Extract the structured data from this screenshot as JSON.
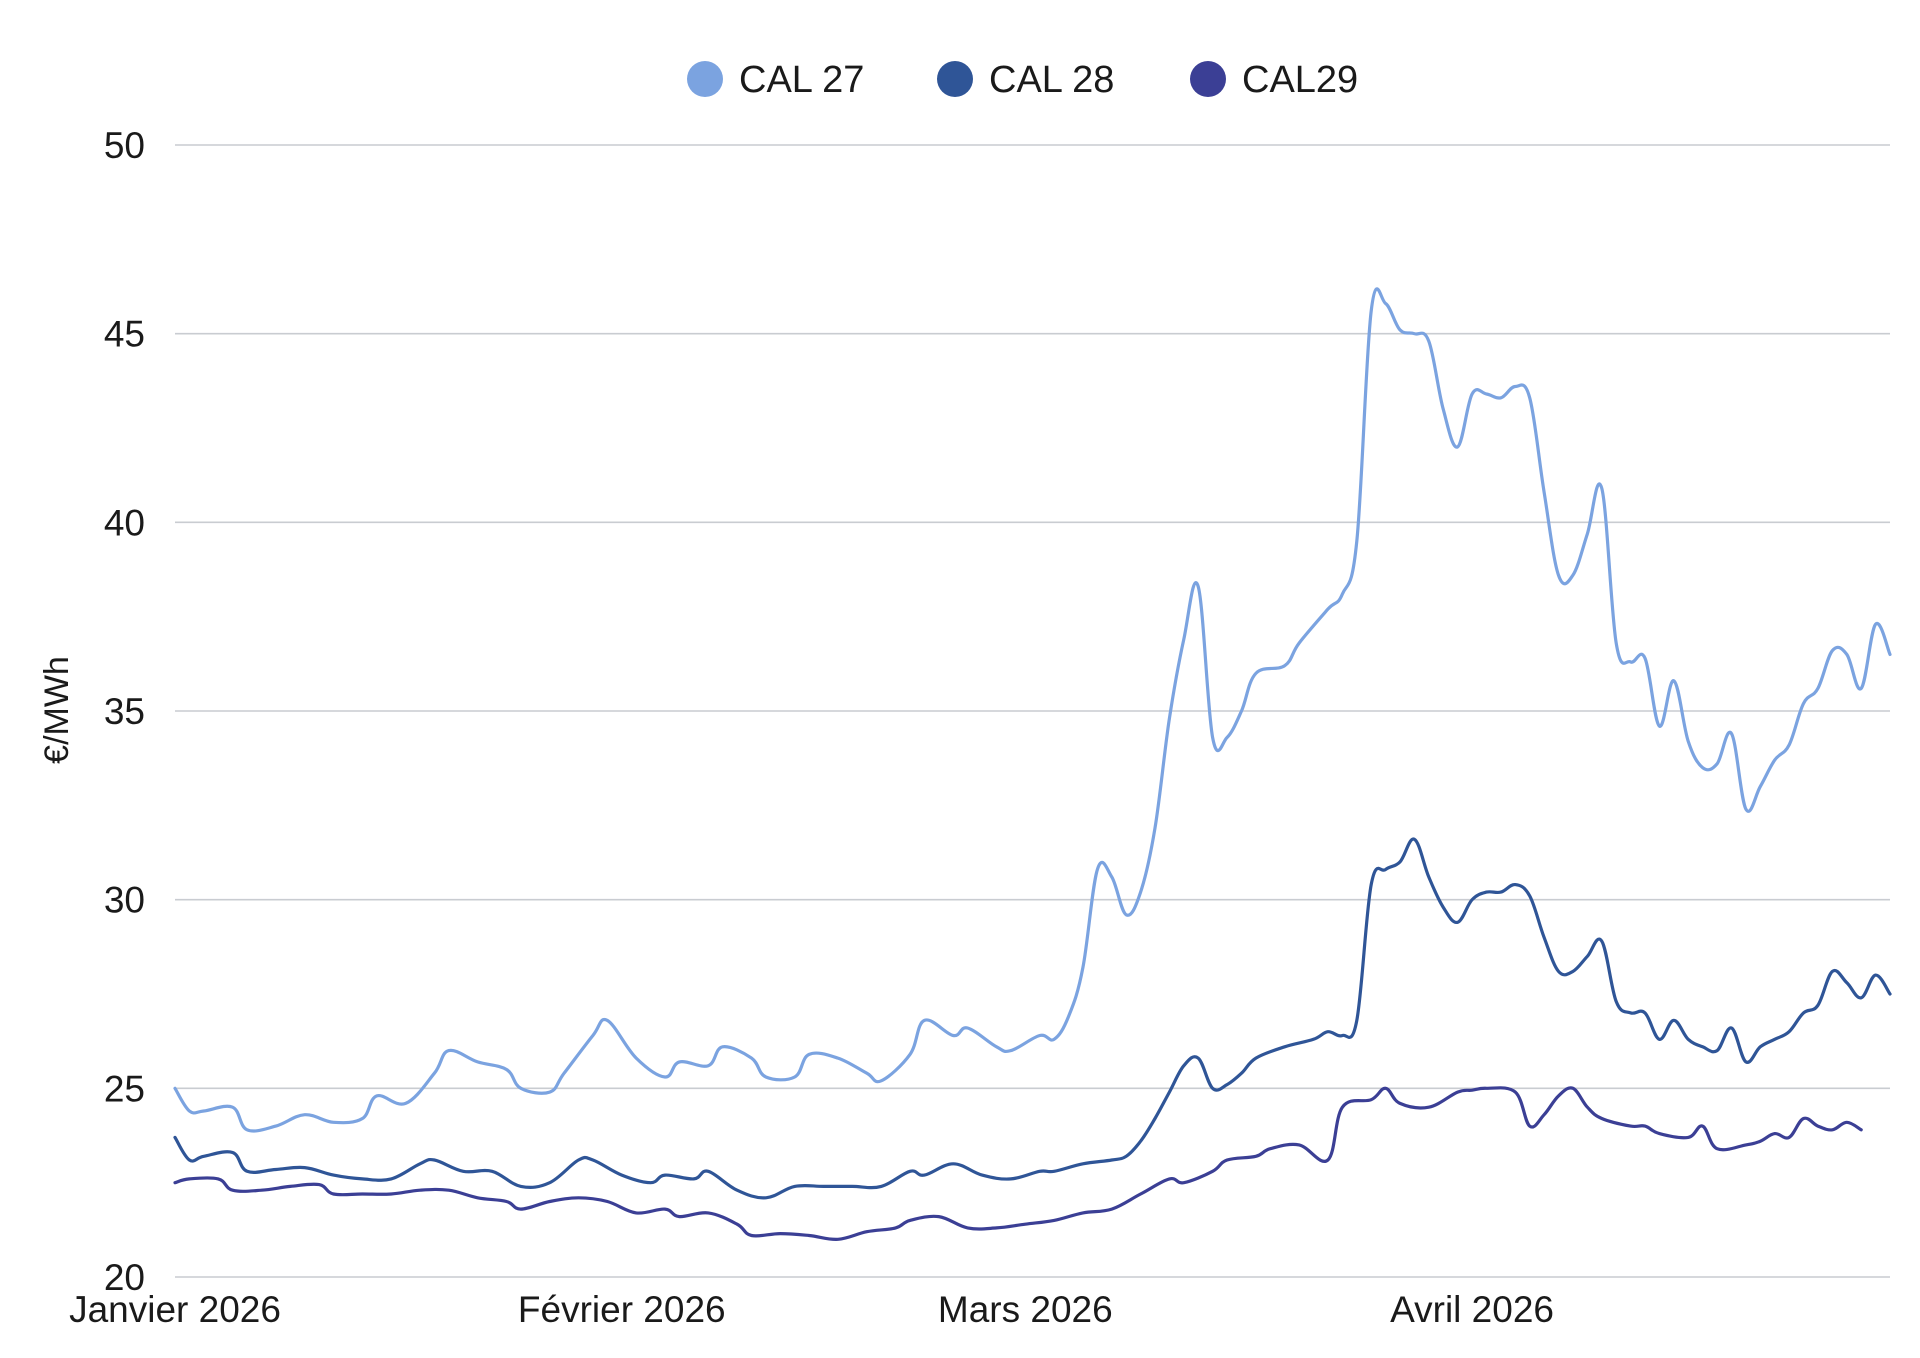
{
  "chart_data": {
    "type": "line",
    "title": "",
    "xlabel": "",
    "ylabel": "€/MWh",
    "ylim": [
      20,
      50
    ],
    "yticks": [
      20,
      25,
      30,
      35,
      40,
      45,
      50
    ],
    "xlim": [
      "2026-01-01",
      "2026-04-30"
    ],
    "xticks": [
      {
        "date": "2026-01-01",
        "label": "Janvier 2026"
      },
      {
        "date": "2026-02-01",
        "label": "Février 2026"
      },
      {
        "date": "2026-03-01",
        "label": "Mars 2026"
      },
      {
        "date": "2026-04-01",
        "label": "Avril 2026"
      }
    ],
    "grid": true,
    "legend_position": "top-center",
    "series": [
      {
        "name": "CAL 27",
        "color": "#7ba3e0",
        "points": [
          [
            "2026-01-01",
            25.0
          ],
          [
            "2026-01-02",
            24.4
          ],
          [
            "2026-01-03",
            24.4
          ],
          [
            "2026-01-05",
            24.5
          ],
          [
            "2026-01-06",
            23.9
          ],
          [
            "2026-01-08",
            24.0
          ],
          [
            "2026-01-10",
            24.3
          ],
          [
            "2026-01-12",
            24.1
          ],
          [
            "2026-01-14",
            24.2
          ],
          [
            "2026-01-15",
            24.8
          ],
          [
            "2026-01-17",
            24.6
          ],
          [
            "2026-01-19",
            25.4
          ],
          [
            "2026-01-20",
            26.0
          ],
          [
            "2026-01-22",
            25.7
          ],
          [
            "2026-01-24",
            25.5
          ],
          [
            "2026-01-25",
            25.0
          ],
          [
            "2026-01-27",
            24.9
          ],
          [
            "2026-01-28",
            25.4
          ],
          [
            "2026-01-30",
            26.4
          ],
          [
            "2026-01-31",
            26.8
          ],
          [
            "2026-02-02",
            25.8
          ],
          [
            "2026-02-04",
            25.3
          ],
          [
            "2026-02-05",
            25.7
          ],
          [
            "2026-02-07",
            25.6
          ],
          [
            "2026-02-08",
            26.1
          ],
          [
            "2026-02-10",
            25.8
          ],
          [
            "2026-02-11",
            25.3
          ],
          [
            "2026-02-13",
            25.3
          ],
          [
            "2026-02-14",
            25.9
          ],
          [
            "2026-02-16",
            25.8
          ],
          [
            "2026-02-18",
            25.4
          ],
          [
            "2026-02-19",
            25.2
          ],
          [
            "2026-02-21",
            25.9
          ],
          [
            "2026-02-22",
            26.8
          ],
          [
            "2026-02-24",
            26.4
          ],
          [
            "2026-02-25",
            26.6
          ],
          [
            "2026-02-27",
            26.1
          ],
          [
            "2026-02-28",
            26.0
          ],
          [
            "2026-03-02",
            26.4
          ],
          [
            "2026-03-03",
            26.3
          ],
          [
            "2026-03-04",
            26.9
          ],
          [
            "2026-03-05",
            28.2
          ],
          [
            "2026-03-06",
            30.8
          ],
          [
            "2026-03-07",
            30.6
          ],
          [
            "2026-03-08",
            29.6
          ],
          [
            "2026-03-09",
            30.2
          ],
          [
            "2026-03-10",
            31.9
          ],
          [
            "2026-03-11",
            34.8
          ],
          [
            "2026-03-12",
            36.9
          ],
          [
            "2026-03-13",
            38.3
          ],
          [
            "2026-03-14",
            34.3
          ],
          [
            "2026-03-15",
            34.3
          ],
          [
            "2026-03-16",
            35.0
          ],
          [
            "2026-03-17",
            36.0
          ],
          [
            "2026-03-19",
            36.2
          ],
          [
            "2026-03-20",
            36.8
          ],
          [
            "2026-03-22",
            37.7
          ],
          [
            "2026-03-23",
            38.1
          ],
          [
            "2026-03-24",
            39.5
          ],
          [
            "2026-03-25",
            45.6
          ],
          [
            "2026-03-26",
            45.8
          ],
          [
            "2026-03-27",
            45.1
          ],
          [
            "2026-03-28",
            45.0
          ],
          [
            "2026-03-29",
            44.8
          ],
          [
            "2026-03-30",
            43.0
          ],
          [
            "2026-03-31",
            42.0
          ],
          [
            "2026-04-01",
            43.4
          ],
          [
            "2026-04-02",
            43.4
          ],
          [
            "2026-04-03",
            43.3
          ],
          [
            "2026-04-04",
            43.6
          ],
          [
            "2026-04-05",
            43.3
          ],
          [
            "2026-04-06",
            40.8
          ],
          [
            "2026-04-07",
            38.6
          ],
          [
            "2026-04-08",
            38.6
          ],
          [
            "2026-04-09",
            39.7
          ],
          [
            "2026-04-10",
            40.9
          ],
          [
            "2026-04-11",
            36.8
          ],
          [
            "2026-04-12",
            36.3
          ],
          [
            "2026-04-13",
            36.4
          ],
          [
            "2026-04-14",
            34.6
          ],
          [
            "2026-04-15",
            35.8
          ],
          [
            "2026-04-16",
            34.2
          ],
          [
            "2026-04-17",
            33.5
          ],
          [
            "2026-04-18",
            33.6
          ],
          [
            "2026-04-19",
            34.4
          ],
          [
            "2026-04-20",
            32.4
          ],
          [
            "2026-04-21",
            33.0
          ],
          [
            "2026-04-22",
            33.7
          ],
          [
            "2026-04-23",
            34.1
          ],
          [
            "2026-04-24",
            35.2
          ],
          [
            "2026-04-25",
            35.6
          ],
          [
            "2026-04-26",
            36.6
          ],
          [
            "2026-04-27",
            36.5
          ],
          [
            "2026-04-28",
            35.6
          ],
          [
            "2026-04-29",
            37.3
          ],
          [
            "2026-04-30",
            36.5
          ]
        ]
      },
      {
        "name": "CAL 28",
        "color": "#2f5597",
        "points": [
          [
            "2026-01-01",
            23.7
          ],
          [
            "2026-01-02",
            23.1
          ],
          [
            "2026-01-03",
            23.2
          ],
          [
            "2026-01-05",
            23.3
          ],
          [
            "2026-01-06",
            22.8
          ],
          [
            "2026-01-08",
            22.85
          ],
          [
            "2026-01-10",
            22.9
          ],
          [
            "2026-01-12",
            22.7
          ],
          [
            "2026-01-14",
            22.6
          ],
          [
            "2026-01-16",
            22.6
          ],
          [
            "2026-01-18",
            23.0
          ],
          [
            "2026-01-19",
            23.1
          ],
          [
            "2026-01-21",
            22.8
          ],
          [
            "2026-01-23",
            22.8
          ],
          [
            "2026-01-25",
            22.4
          ],
          [
            "2026-01-27",
            22.5
          ],
          [
            "2026-01-29",
            23.1
          ],
          [
            "2026-01-30",
            23.1
          ],
          [
            "2026-02-01",
            22.7
          ],
          [
            "2026-02-03",
            22.5
          ],
          [
            "2026-02-04",
            22.7
          ],
          [
            "2026-02-06",
            22.6
          ],
          [
            "2026-02-07",
            22.8
          ],
          [
            "2026-02-09",
            22.3
          ],
          [
            "2026-02-11",
            22.1
          ],
          [
            "2026-02-13",
            22.4
          ],
          [
            "2026-02-15",
            22.4
          ],
          [
            "2026-02-17",
            22.4
          ],
          [
            "2026-02-19",
            22.4
          ],
          [
            "2026-02-21",
            22.8
          ],
          [
            "2026-02-22",
            22.7
          ],
          [
            "2026-02-24",
            23.0
          ],
          [
            "2026-02-26",
            22.7
          ],
          [
            "2026-02-28",
            22.6
          ],
          [
            "2026-03-02",
            22.8
          ],
          [
            "2026-03-03",
            22.8
          ],
          [
            "2026-03-05",
            23.0
          ],
          [
            "2026-03-07",
            23.1
          ],
          [
            "2026-03-08",
            23.2
          ],
          [
            "2026-03-09",
            23.6
          ],
          [
            "2026-03-10",
            24.2
          ],
          [
            "2026-03-11",
            24.9
          ],
          [
            "2026-03-12",
            25.6
          ],
          [
            "2026-03-13",
            25.8
          ],
          [
            "2026-03-14",
            25.0
          ],
          [
            "2026-03-15",
            25.1
          ],
          [
            "2026-03-16",
            25.4
          ],
          [
            "2026-03-17",
            25.8
          ],
          [
            "2026-03-19",
            26.1
          ],
          [
            "2026-03-21",
            26.3
          ],
          [
            "2026-03-22",
            26.5
          ],
          [
            "2026-03-23",
            26.4
          ],
          [
            "2026-03-24",
            26.8
          ],
          [
            "2026-03-25",
            30.4
          ],
          [
            "2026-03-26",
            30.8
          ],
          [
            "2026-03-27",
            31.0
          ],
          [
            "2026-03-28",
            31.6
          ],
          [
            "2026-03-29",
            30.6
          ],
          [
            "2026-03-30",
            29.8
          ],
          [
            "2026-03-31",
            29.4
          ],
          [
            "2026-04-01",
            30.0
          ],
          [
            "2026-04-02",
            30.2
          ],
          [
            "2026-04-03",
            30.2
          ],
          [
            "2026-04-04",
            30.4
          ],
          [
            "2026-04-05",
            30.1
          ],
          [
            "2026-04-06",
            29.0
          ],
          [
            "2026-04-07",
            28.1
          ],
          [
            "2026-04-08",
            28.1
          ],
          [
            "2026-04-09",
            28.5
          ],
          [
            "2026-04-10",
            28.9
          ],
          [
            "2026-04-11",
            27.3
          ],
          [
            "2026-04-12",
            27.0
          ],
          [
            "2026-04-13",
            27.0
          ],
          [
            "2026-04-14",
            26.3
          ],
          [
            "2026-04-15",
            26.8
          ],
          [
            "2026-04-16",
            26.3
          ],
          [
            "2026-04-17",
            26.1
          ],
          [
            "2026-04-18",
            26.0
          ],
          [
            "2026-04-19",
            26.6
          ],
          [
            "2026-04-20",
            25.7
          ],
          [
            "2026-04-21",
            26.1
          ],
          [
            "2026-04-22",
            26.3
          ],
          [
            "2026-04-23",
            26.5
          ],
          [
            "2026-04-24",
            27.0
          ],
          [
            "2026-04-25",
            27.2
          ],
          [
            "2026-04-26",
            28.1
          ],
          [
            "2026-04-27",
            27.8
          ],
          [
            "2026-04-28",
            27.4
          ],
          [
            "2026-04-29",
            28.0
          ],
          [
            "2026-04-30",
            27.5
          ]
        ]
      },
      {
        "name": "CAL29",
        "color": "#3b3f95",
        "points": [
          [
            "2026-01-01",
            22.5
          ],
          [
            "2026-01-02",
            22.6
          ],
          [
            "2026-01-04",
            22.6
          ],
          [
            "2026-01-05",
            22.3
          ],
          [
            "2026-01-07",
            22.3
          ],
          [
            "2026-01-09",
            22.4
          ],
          [
            "2026-01-11",
            22.45
          ],
          [
            "2026-01-12",
            22.2
          ],
          [
            "2026-01-14",
            22.2
          ],
          [
            "2026-01-16",
            22.2
          ],
          [
            "2026-01-18",
            22.3
          ],
          [
            "2026-01-20",
            22.3
          ],
          [
            "2026-01-22",
            22.1
          ],
          [
            "2026-01-24",
            22.0
          ],
          [
            "2026-01-25",
            21.8
          ],
          [
            "2026-01-27",
            22.0
          ],
          [
            "2026-01-29",
            22.1
          ],
          [
            "2026-01-31",
            22.0
          ],
          [
            "2026-02-02",
            21.7
          ],
          [
            "2026-02-04",
            21.8
          ],
          [
            "2026-02-05",
            21.6
          ],
          [
            "2026-02-07",
            21.7
          ],
          [
            "2026-02-09",
            21.4
          ],
          [
            "2026-02-10",
            21.1
          ],
          [
            "2026-02-12",
            21.15
          ],
          [
            "2026-02-14",
            21.1
          ],
          [
            "2026-02-16",
            21.0
          ],
          [
            "2026-02-18",
            21.2
          ],
          [
            "2026-02-20",
            21.3
          ],
          [
            "2026-02-21",
            21.5
          ],
          [
            "2026-02-23",
            21.6
          ],
          [
            "2026-02-25",
            21.3
          ],
          [
            "2026-02-27",
            21.3
          ],
          [
            "2026-03-01",
            21.4
          ],
          [
            "2026-03-03",
            21.5
          ],
          [
            "2026-03-05",
            21.7
          ],
          [
            "2026-03-07",
            21.8
          ],
          [
            "2026-03-09",
            22.2
          ],
          [
            "2026-03-11",
            22.6
          ],
          [
            "2026-03-12",
            22.5
          ],
          [
            "2026-03-14",
            22.8
          ],
          [
            "2026-03-15",
            23.1
          ],
          [
            "2026-03-17",
            23.2
          ],
          [
            "2026-03-18",
            23.4
          ],
          [
            "2026-03-20",
            23.5
          ],
          [
            "2026-03-22",
            23.1
          ],
          [
            "2026-03-23",
            24.5
          ],
          [
            "2026-03-25",
            24.7
          ],
          [
            "2026-03-26",
            25.0
          ],
          [
            "2026-03-27",
            24.6
          ],
          [
            "2026-03-29",
            24.5
          ],
          [
            "2026-03-31",
            24.9
          ],
          [
            "2026-04-01",
            24.95
          ],
          [
            "2026-04-02",
            25.0
          ],
          [
            "2026-04-04",
            24.9
          ],
          [
            "2026-04-05",
            24.0
          ],
          [
            "2026-04-06",
            24.3
          ],
          [
            "2026-04-07",
            24.8
          ],
          [
            "2026-04-08",
            25.0
          ],
          [
            "2026-04-09",
            24.5
          ],
          [
            "2026-04-10",
            24.2
          ],
          [
            "2026-04-12",
            24.0
          ],
          [
            "2026-04-13",
            24.0
          ],
          [
            "2026-04-14",
            23.8
          ],
          [
            "2026-04-16",
            23.7
          ],
          [
            "2026-04-17",
            24.0
          ],
          [
            "2026-04-18",
            23.4
          ],
          [
            "2026-04-20",
            23.5
          ],
          [
            "2026-04-21",
            23.6
          ],
          [
            "2026-04-22",
            23.8
          ],
          [
            "2026-04-23",
            23.7
          ],
          [
            "2026-04-24",
            24.2
          ],
          [
            "2026-04-25",
            24.0
          ],
          [
            "2026-04-26",
            23.9
          ],
          [
            "2026-04-27",
            24.1
          ],
          [
            "2026-04-28",
            23.9
          ]
        ]
      }
    ]
  }
}
